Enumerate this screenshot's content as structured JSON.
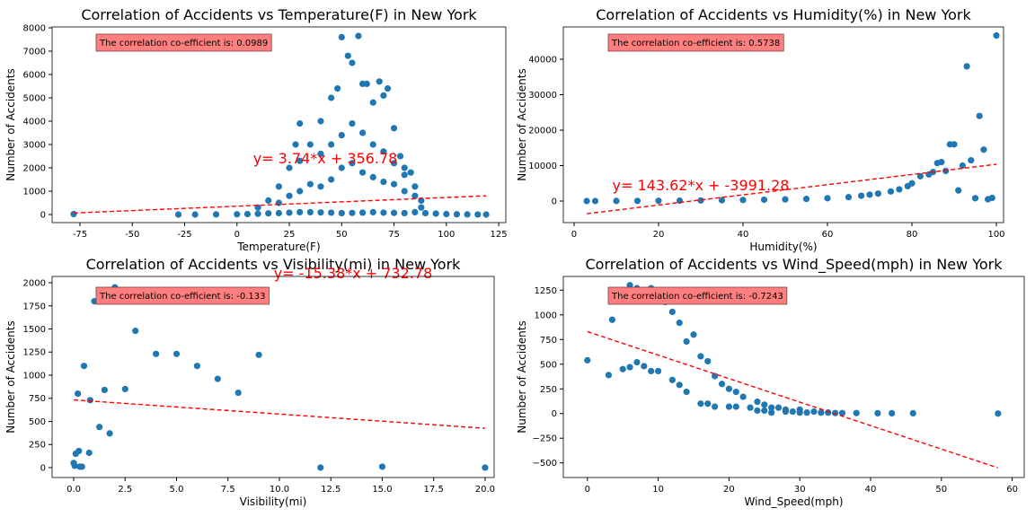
{
  "chart_data": [
    {
      "type": "scatter",
      "title": "Correlation of Accidents vs Temperature(F) in New York",
      "x_label": "Temperature(F)",
      "y_label": "Number of Accidents",
      "color": "#1f77b4",
      "x": [
        -78,
        -28,
        -20,
        -10,
        0,
        5,
        10,
        15,
        20,
        25,
        30,
        35,
        40,
        45,
        50,
        55,
        60,
        65,
        70,
        75,
        80,
        85,
        90,
        95,
        100,
        105,
        110,
        115,
        119,
        10,
        15,
        20,
        25,
        28,
        30,
        35,
        40,
        45,
        48,
        50,
        53,
        55,
        58,
        60,
        62,
        65,
        68,
        70,
        72,
        75,
        78,
        80,
        83,
        85,
        88,
        20,
        25,
        30,
        35,
        40,
        45,
        50,
        55,
        60,
        65,
        70,
        75,
        80,
        85,
        88,
        30,
        40,
        45,
        50,
        55,
        60,
        65,
        70,
        75,
        80
      ],
      "values": [
        20,
        0,
        0,
        5,
        10,
        20,
        30,
        50,
        60,
        80,
        100,
        100,
        90,
        80,
        60,
        70,
        80,
        100,
        80,
        70,
        60,
        100,
        60,
        40,
        20,
        10,
        5,
        3,
        0,
        300,
        600,
        1200,
        2000,
        3000,
        3900,
        3000,
        4000,
        5000,
        5400,
        7600,
        6800,
        6500,
        7650,
        5600,
        5600,
        4800,
        5700,
        5100,
        5400,
        3700,
        2500,
        2000,
        1800,
        1200,
        600,
        500,
        800,
        1000,
        1300,
        1200,
        1500,
        2000,
        2200,
        1800,
        1600,
        1400,
        1300,
        1000,
        800,
        300,
        2300,
        2600,
        3000,
        3400,
        3900,
        3500,
        3000,
        2700,
        2200,
        1700
      ],
      "xlim": [
        -88.3,
        128.4
      ],
      "xticks": [
        -75,
        -50,
        -25,
        0,
        25,
        50,
        75,
        100,
        125
      ],
      "ylim": [
        -346,
        8038
      ],
      "yticks": [
        0,
        1000,
        2000,
        3000,
        4000,
        5000,
        6000,
        7000,
        8000
      ],
      "annotation": "The correlation co-efficient is: 0.0989",
      "fit_line": {
        "label": "y= 3.74*x + 356.78",
        "slope": 3.74,
        "intercept": 356.78,
        "color": "#ff0000"
      }
    },
    {
      "type": "scatter",
      "title": "Correlation of Accidents vs Humidity(%) in New York",
      "x_label": "Humidity(%)",
      "y_label": "Number of Accidents",
      "color": "#1f77b4",
      "x": [
        3,
        5,
        10,
        15,
        20,
        25,
        30,
        35,
        40,
        45,
        50,
        55,
        60,
        65,
        68,
        70,
        72,
        75,
        77,
        79,
        80,
        82,
        84,
        85,
        86,
        87,
        88,
        89,
        90,
        91,
        92,
        93,
        94,
        95,
        96,
        97,
        98,
        99,
        100
      ],
      "values": [
        0,
        10,
        30,
        50,
        80,
        120,
        170,
        230,
        300,
        380,
        470,
        600,
        800,
        1100,
        1500,
        1800,
        2100,
        2700,
        3300,
        4200,
        5000,
        7000,
        7500,
        8200,
        10700,
        11000,
        8500,
        16000,
        16000,
        3000,
        10000,
        38000,
        11500,
        800,
        24000,
        14500,
        500,
        900,
        46700
      ],
      "xlim": [
        -2.55,
        101.7
      ],
      "xticks": [
        0,
        20,
        40,
        60,
        80,
        100
      ],
      "ylim": [
        -6076,
        49114
      ],
      "yticks": [
        0,
        10000,
        20000,
        30000,
        40000
      ],
      "annotation": "The correlation co-efficient is: 0.5738",
      "fit_line": {
        "label": "y= 143.62*x + -3991.28",
        "slope": 143.62,
        "intercept": -3991.28,
        "color": "#ff0000"
      }
    },
    {
      "type": "scatter",
      "title": "Correlation of Accidents vs Visibility(mi) in New York",
      "x_label": "Visibility(mi)",
      "y_label": "Number of Accidents",
      "color": "#1f77b4",
      "x": [
        0,
        0.05,
        0.1,
        0.2,
        0.25,
        0.3,
        0.4,
        0.5,
        0.75,
        0.8,
        1,
        1.25,
        1.5,
        1.75,
        2,
        2.5,
        3,
        4,
        5,
        6,
        7,
        8,
        9,
        12,
        15,
        20
      ],
      "values": [
        50,
        20,
        150,
        800,
        180,
        10,
        10,
        1100,
        160,
        730,
        1800,
        440,
        840,
        370,
        1950,
        850,
        1480,
        1230,
        1230,
        1100,
        960,
        810,
        1220,
        0,
        10,
        0
      ],
      "xlim": [
        -1.05,
        20.44
      ],
      "xticks": [
        {
          "value": 0,
          "label": "0.0"
        },
        {
          "value": 2.5,
          "label": "2.5"
        },
        {
          "value": 5,
          "label": "5.0"
        },
        {
          "value": 7.5,
          "label": "7.5"
        },
        {
          "value": 10,
          "label": "10.0"
        },
        {
          "value": 12.5,
          "label": "12.5"
        },
        {
          "value": 15,
          "label": "15.0"
        },
        {
          "value": 17.5,
          "label": "17.5"
        },
        {
          "value": 20,
          "label": "20.0"
        }
      ],
      "ylim": [
        -107,
        2068
      ],
      "yticks": [
        0,
        250,
        500,
        750,
        1000,
        1250,
        1500,
        1750,
        2000
      ],
      "annotation": "The correlation co-efficient is: -0.133",
      "fit_line": {
        "label": "y= -15.38*x + 732.78",
        "slope": -15.38,
        "intercept": 732.78,
        "color": "#ff0000"
      }
    },
    {
      "type": "scatter",
      "title": "Correlation of Accidents vs Wind_Speed(mph) in New York",
      "x_label": "Wind_Speed(mph)",
      "y_label": "Number of Accidents",
      "color": "#1f77b4",
      "x": [
        0,
        3,
        3.5,
        4.5,
        5,
        6,
        6,
        7,
        7,
        8,
        8,
        9,
        9,
        10,
        10,
        11,
        12,
        12,
        13,
        13,
        14,
        14,
        15,
        16,
        16,
        17,
        17,
        18,
        18,
        19,
        20,
        20,
        21,
        21,
        22,
        23,
        24,
        24,
        25,
        25,
        26,
        26,
        27,
        28,
        28,
        29,
        30,
        30,
        31,
        32,
        33,
        34,
        35,
        36,
        38,
        41,
        43,
        46,
        58
      ],
      "values": [
        540,
        390,
        950,
        1190,
        450,
        1300,
        470,
        1270,
        520,
        1170,
        480,
        1270,
        430,
        430,
        1220,
        1130,
        1030,
        340,
        920,
        290,
        730,
        220,
        800,
        580,
        100,
        100,
        530,
        380,
        70,
        300,
        70,
        250,
        70,
        220,
        170,
        60,
        120,
        30,
        90,
        30,
        60,
        10,
        60,
        40,
        20,
        20,
        40,
        10,
        10,
        20,
        10,
        10,
        5,
        5,
        5,
        3,
        3,
        3,
        0
      ],
      "xlim": [
        -3.4,
        61.7
      ],
      "xticks": [
        0,
        10,
        20,
        30,
        40,
        50,
        60
      ],
      "ylim": [
        -648,
        1389
      ],
      "yticks": [
        {
          "value": -500,
          "label": "−500"
        },
        {
          "value": -250,
          "label": "−250"
        },
        0,
        250,
        500,
        750,
        1000,
        1250
      ],
      "annotation": "The correlation co-efficient is: -0.7243",
      "fit_line": {
        "slope": -23.8,
        "intercept": 830,
        "color": "#ff0000"
      }
    }
  ]
}
